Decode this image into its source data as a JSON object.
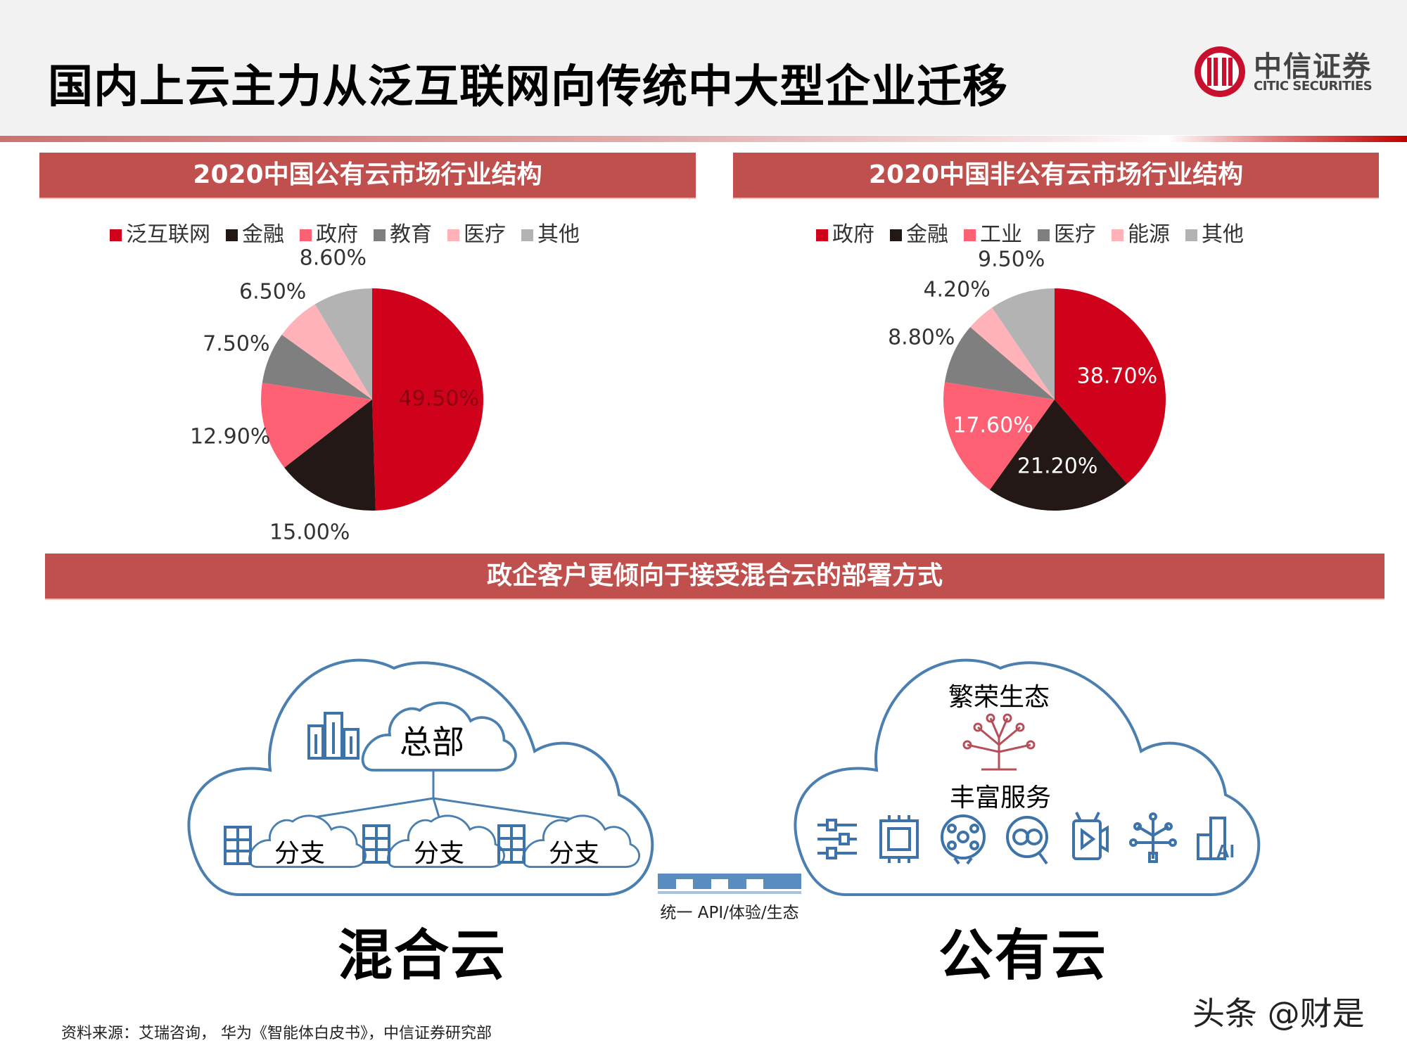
{
  "header": {
    "title": "国内上云主力从泛互联网向传统中大型企业迁移",
    "logo_cn": "中信证券",
    "logo_en": "CITIC SECURITIES"
  },
  "chart_data": [
    {
      "type": "pie",
      "title": "2020中国公有云市场行业结构",
      "categories": [
        "泛互联网",
        "金融",
        "政府",
        "教育",
        "医疗",
        "其他"
      ],
      "values": [
        49.5,
        15.0,
        12.9,
        7.5,
        6.5,
        8.6
      ],
      "labels": [
        "49.50%",
        "15.00%",
        "12.90%",
        "7.50%",
        "6.50%",
        "8.60%"
      ],
      "colors": [
        "#d0021b",
        "#231815",
        "#ff6174",
        "#7f7f7f",
        "#ffb3b8",
        "#b3b3b3"
      ],
      "legend": "top"
    },
    {
      "type": "pie",
      "title": "2020中国非公有云市场行业结构",
      "categories": [
        "政府",
        "金融",
        "工业",
        "医疗",
        "能源",
        "其他"
      ],
      "values": [
        38.7,
        21.2,
        17.6,
        8.8,
        4.2,
        9.5
      ],
      "labels": [
        "38.70%",
        "21.20%",
        "17.60%",
        "8.80%",
        "4.20%",
        "9.50%"
      ],
      "colors": [
        "#d0021b",
        "#231815",
        "#ff6174",
        "#7f7f7f",
        "#ffb3b8",
        "#b3b3b3"
      ],
      "legend": "top"
    }
  ],
  "banner": "政企客户更倾向于接受混合云的部署方式",
  "hybrid": {
    "title": "混合云",
    "hq": "总部",
    "branches": [
      "分支",
      "分支",
      "分支"
    ]
  },
  "connector": "统一 API/体验/生态",
  "public": {
    "title": "公有云",
    "ecosystem": "繁荣生态",
    "services": "丰富服务",
    "icons": [
      "sliders-icon",
      "chip-icon",
      "network-brain-icon",
      "translate-search-icon",
      "video-device-icon",
      "iot-bulb-icon",
      "ai-building-icon"
    ]
  },
  "source": "资料来源：艾瑞咨询， 华为《智能体白皮书》，中信证券研究部",
  "watermark": "头条 @财是",
  "colors": {
    "banner": "#c0504d",
    "cloud_line": "#4a7fb0",
    "icon": "#3d73a8"
  }
}
